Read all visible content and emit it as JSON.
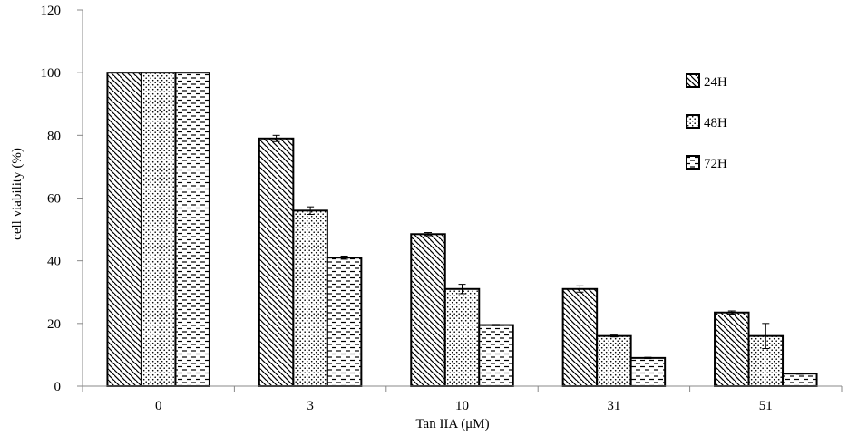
{
  "chart_data": {
    "type": "bar",
    "title": "",
    "xlabel": "Tan IIA (μM)",
    "ylabel": "cell viability (%)",
    "ylim": [
      0,
      120
    ],
    "yticks": [
      0,
      20,
      40,
      60,
      80,
      100,
      120
    ],
    "categories": [
      "0",
      "3",
      "10",
      "31",
      "51"
    ],
    "series": [
      {
        "name": "24H",
        "pattern": "diagonal",
        "values": [
          100,
          79,
          48.5,
          31,
          23.5
        ],
        "errors": [
          0,
          1.0,
          0.5,
          1.0,
          0.5
        ]
      },
      {
        "name": "48H",
        "pattern": "dots",
        "values": [
          100,
          56,
          31,
          16,
          16
        ],
        "errors": [
          0,
          1.2,
          1.5,
          0.3,
          4.0
        ]
      },
      {
        "name": "72H",
        "pattern": "dashes",
        "values": [
          100,
          41,
          19.5,
          9,
          4
        ],
        "errors": [
          0,
          0.5,
          0.2,
          0.2,
          0.2
        ]
      }
    ],
    "grid": false,
    "legend": "right"
  }
}
